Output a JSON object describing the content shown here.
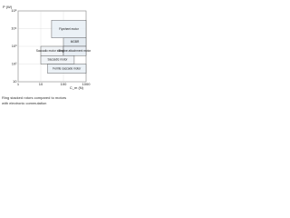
{
  "chart_data": {
    "type": "region",
    "x_label": "C_m (N)",
    "y_label": "P (W)",
    "caption": [
      "Ring stacked rotors compared to motors",
      "with electronic commutation"
    ],
    "log_x": true,
    "log_y": true,
    "xlim": [
      1,
      1000
    ],
    "ylim": [
      10,
      100000
    ],
    "xticks": [
      1,
      10,
      100,
      1000
    ],
    "yticks": [
      10,
      {
        "value": 100,
        "label": "10²"
      },
      {
        "value": 1000,
        "label": "10³"
      },
      {
        "value": 10000,
        "label": "10⁴"
      },
      {
        "value": 100000,
        "label": "10⁵"
      }
    ],
    "regions": [
      {
        "name": "Flywheel motor",
        "x": [
          30,
          1000
        ],
        "y": [
          3000,
          30000
        ],
        "color": "#e8eef4"
      },
      {
        "name": "MGBR",
        "x": [
          100,
          1000
        ],
        "y": [
          1000,
          3000
        ],
        "color": "#dfe7ef"
      },
      {
        "name": "Saccadic motor standard",
        "x": [
          10,
          100
        ],
        "y": [
          300,
          1000
        ],
        "color": "#eef2f6"
      },
      {
        "name": "Engine attachment motor",
        "x": [
          100,
          1000
        ],
        "y": [
          300,
          1000
        ],
        "color": "#e4ebf2"
      },
      {
        "name": "Saccadic motor",
        "x": [
          10,
          300
        ],
        "y": [
          100,
          300
        ],
        "color": "#eef2f6"
      },
      {
        "name": "Ferrite saccade motor",
        "x": [
          20,
          1000
        ],
        "y": [
          30,
          100
        ],
        "color": "#e8eef4"
      }
    ]
  }
}
